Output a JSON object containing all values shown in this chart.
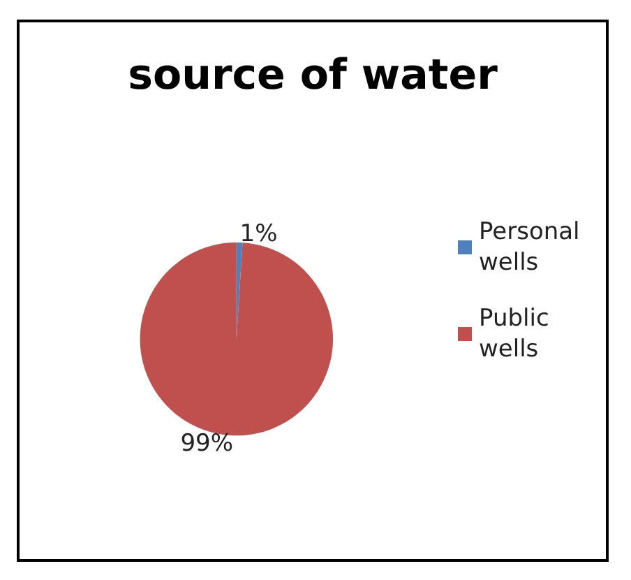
{
  "chart_data": {
    "type": "pie",
    "title": "source of water",
    "categories": [
      "Personal wells",
      "Public wells"
    ],
    "values": [
      1,
      99
    ],
    "colors": [
      "#4f81bd",
      "#c0504d"
    ],
    "value_labels": [
      "1%",
      "99%"
    ],
    "legend": "right"
  }
}
